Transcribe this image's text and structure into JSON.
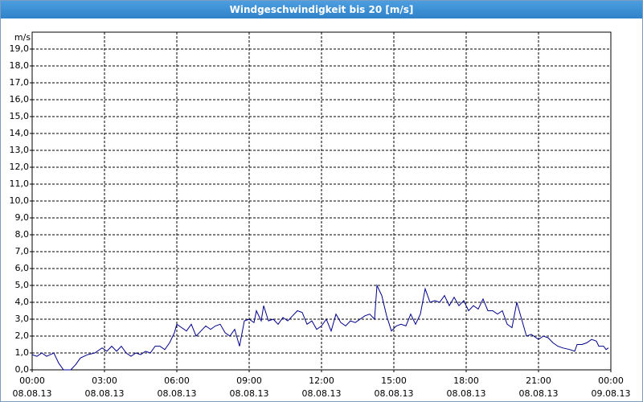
{
  "chart_data": {
    "type": "line",
    "title": "Windgeschwindigkeit bis 20 [m/s]",
    "y_label": "m/s",
    "xlim": [
      0,
      24
    ],
    "ylim": [
      0,
      20
    ],
    "grid": true,
    "xticks": [
      {
        "value": 0,
        "label": "00:00\n08.08.13"
      },
      {
        "value": 3,
        "label": "03:00\n08.08.13"
      },
      {
        "value": 6,
        "label": "06:00\n08.08.13"
      },
      {
        "value": 9,
        "label": "09:00\n08.08.13"
      },
      {
        "value": 12,
        "label": "12:00\n08.08.13"
      },
      {
        "value": 15,
        "label": "15:00\n08.08.13"
      },
      {
        "value": 18,
        "label": "18:00\n08.08.13"
      },
      {
        "value": 21,
        "label": "21:00\n08.08.13"
      },
      {
        "value": 24,
        "label": "00:00\n09.08.13"
      }
    ],
    "yticks": [
      {
        "value": 0,
        "label": "0,0"
      },
      {
        "value": 1,
        "label": "1,0"
      },
      {
        "value": 2,
        "label": "2,0"
      },
      {
        "value": 3,
        "label": "3,0"
      },
      {
        "value": 4,
        "label": "4,0"
      },
      {
        "value": 5,
        "label": "5,0"
      },
      {
        "value": 6,
        "label": "6,0"
      },
      {
        "value": 7,
        "label": "7,0"
      },
      {
        "value": 8,
        "label": "8,0"
      },
      {
        "value": 9,
        "label": "9,0"
      },
      {
        "value": 10,
        "label": "10,0"
      },
      {
        "value": 11,
        "label": "11,0"
      },
      {
        "value": 12,
        "label": "12,0"
      },
      {
        "value": 13,
        "label": "13,0"
      },
      {
        "value": 14,
        "label": "14,0"
      },
      {
        "value": 15,
        "label": "15,0"
      },
      {
        "value": 16,
        "label": "16,0"
      },
      {
        "value": 17,
        "label": "17,0"
      },
      {
        "value": 18,
        "label": "18,0"
      },
      {
        "value": 19,
        "label": "19,0"
      }
    ],
    "x": [
      0,
      0.2,
      0.4,
      0.6,
      0.9,
      1.1,
      1.3,
      1.6,
      1.8,
      2.0,
      2.3,
      2.6,
      2.9,
      3.1,
      3.3,
      3.5,
      3.7,
      3.9,
      4.1,
      4.3,
      4.5,
      4.7,
      4.9,
      5.1,
      5.3,
      5.5,
      5.7,
      5.9,
      6.0,
      6.2,
      6.4,
      6.6,
      6.8,
      7.0,
      7.2,
      7.4,
      7.6,
      7.8,
      8.0,
      8.2,
      8.4,
      8.6,
      8.8,
      9.0,
      9.2,
      9.3,
      9.5,
      9.6,
      9.8,
      10.0,
      10.2,
      10.4,
      10.6,
      10.8,
      11.0,
      11.2,
      11.4,
      11.6,
      11.8,
      12.0,
      12.2,
      12.4,
      12.6,
      12.8,
      13.0,
      13.2,
      13.4,
      13.6,
      13.8,
      14.0,
      14.2,
      14.3,
      14.5,
      14.7,
      14.9,
      15.1,
      15.3,
      15.5,
      15.7,
      15.9,
      16.1,
      16.3,
      16.5,
      16.7,
      16.9,
      17.1,
      17.3,
      17.5,
      17.7,
      17.9,
      18.1,
      18.3,
      18.5,
      18.7,
      18.9,
      19.1,
      19.3,
      19.5,
      19.7,
      19.9,
      20.1,
      20.3,
      20.5,
      20.7,
      21.0,
      21.2,
      21.4,
      21.6,
      21.8,
      22.0,
      22.3,
      22.5,
      22.6,
      22.8,
      23.0,
      23.2,
      23.4,
      23.5,
      23.7,
      23.8,
      23.9
    ],
    "series": [
      {
        "color": "#00008b",
        "values": [
          0.9,
          0.8,
          1.0,
          0.8,
          1.0,
          0.4,
          0.0,
          0.0,
          0.3,
          0.7,
          0.9,
          1.0,
          1.3,
          1.1,
          1.4,
          1.1,
          1.4,
          1.0,
          0.8,
          1.0,
          0.9,
          1.1,
          1.0,
          1.4,
          1.4,
          1.2,
          1.6,
          2.2,
          2.7,
          2.5,
          2.3,
          2.7,
          2.0,
          2.3,
          2.6,
          2.4,
          2.6,
          2.7,
          2.2,
          2.0,
          2.4,
          1.4,
          2.9,
          3.0,
          2.8,
          3.5,
          2.9,
          3.8,
          2.9,
          3.0,
          2.7,
          3.1,
          2.9,
          3.2,
          3.5,
          3.4,
          2.7,
          2.9,
          2.4,
          2.6,
          3.0,
          2.3,
          3.3,
          2.8,
          2.6,
          2.9,
          2.8,
          3.0,
          3.2,
          3.3,
          3.0,
          5.0,
          4.4,
          3.2,
          2.3,
          2.6,
          2.7,
          2.6,
          3.3,
          2.7,
          3.3,
          4.8,
          4.0,
          4.1,
          4.0,
          4.4,
          3.8,
          4.3,
          3.8,
          4.1,
          3.5,
          3.8,
          3.6,
          4.2,
          3.5,
          3.5,
          3.3,
          3.5,
          2.7,
          2.5,
          4.0,
          3.0,
          2.0,
          2.1,
          1.8,
          2.0,
          1.9,
          1.6,
          1.4,
          1.3,
          1.2,
          1.1,
          1.5,
          1.5,
          1.6,
          1.8,
          1.7,
          1.4,
          1.4,
          1.2,
          1.3
        ]
      }
    ]
  }
}
